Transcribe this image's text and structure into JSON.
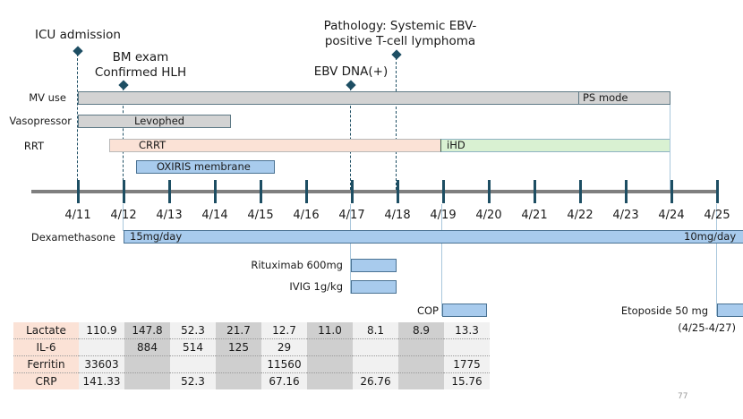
{
  "events": [
    {
      "label_lines": [
        "ICU admission"
      ],
      "date": "4/11"
    },
    {
      "label_lines": [
        "BM exam",
        "Confirmed HLH"
      ],
      "date": "4/12"
    },
    {
      "label_lines": [
        "EBV DNA(+)"
      ],
      "date": "4/17"
    },
    {
      "label_lines": [
        "Pathology: Systemic EBV-",
        "positive T-cell lymphoma"
      ],
      "date": "4/18"
    }
  ],
  "rows": {
    "mv_use": {
      "label": "MV use",
      "ps_mode": "PS mode"
    },
    "vasopressor": {
      "label": "Vasopressor",
      "bar": "Levophed"
    },
    "rrt": {
      "label": "RRT",
      "crrt": "CRRT",
      "ihd": "iHD"
    },
    "oxiris": {
      "bar": "OXIRIS membrane"
    }
  },
  "axis": {
    "dates": [
      "4/11",
      "4/12",
      "4/13",
      "4/14",
      "4/15",
      "4/16",
      "4/17",
      "4/18",
      "4/19",
      "4/20",
      "4/21",
      "4/22",
      "4/23",
      "4/24",
      "4/25"
    ]
  },
  "treatments": {
    "dexamethasone": {
      "label": "Dexamethasone",
      "dose_start": "15mg/day",
      "dose_later": "10mg/day"
    },
    "rituximab": {
      "label": "Rituximab 600mg"
    },
    "ivig": {
      "label": "IVIG 1g/kg"
    },
    "cop": {
      "label": "COP"
    },
    "etoposide": {
      "label": "Etoposide 50 mg",
      "range": "(4/25-4/27)"
    }
  },
  "labs": {
    "rows": [
      {
        "name": "Lactate",
        "values": [
          "110.9",
          "147.8",
          "52.3",
          "21.7",
          "12.7",
          "11.0",
          "8.1",
          "8.9",
          "13.3"
        ]
      },
      {
        "name": "IL-6",
        "values": [
          "",
          "884",
          "514",
          "125",
          "29",
          "",
          "",
          "",
          ""
        ]
      },
      {
        "name": "Ferritin",
        "values": [
          "33603",
          "",
          "",
          "",
          "11560",
          "",
          "",
          "",
          "1775"
        ]
      },
      {
        "name": "CRP",
        "values": [
          "141.33",
          "",
          "52.3",
          "",
          "67.16",
          "",
          "26.76",
          "",
          "15.76"
        ]
      }
    ]
  },
  "page_number": "77",
  "colors": {
    "marker": "#1d4e63",
    "gray_bar": "#d3d3d3",
    "crrt": "#fbe2d6",
    "ihd": "#d9f1d2",
    "drug_bar": "#a8cbed",
    "axis": "#7f7f7f"
  }
}
